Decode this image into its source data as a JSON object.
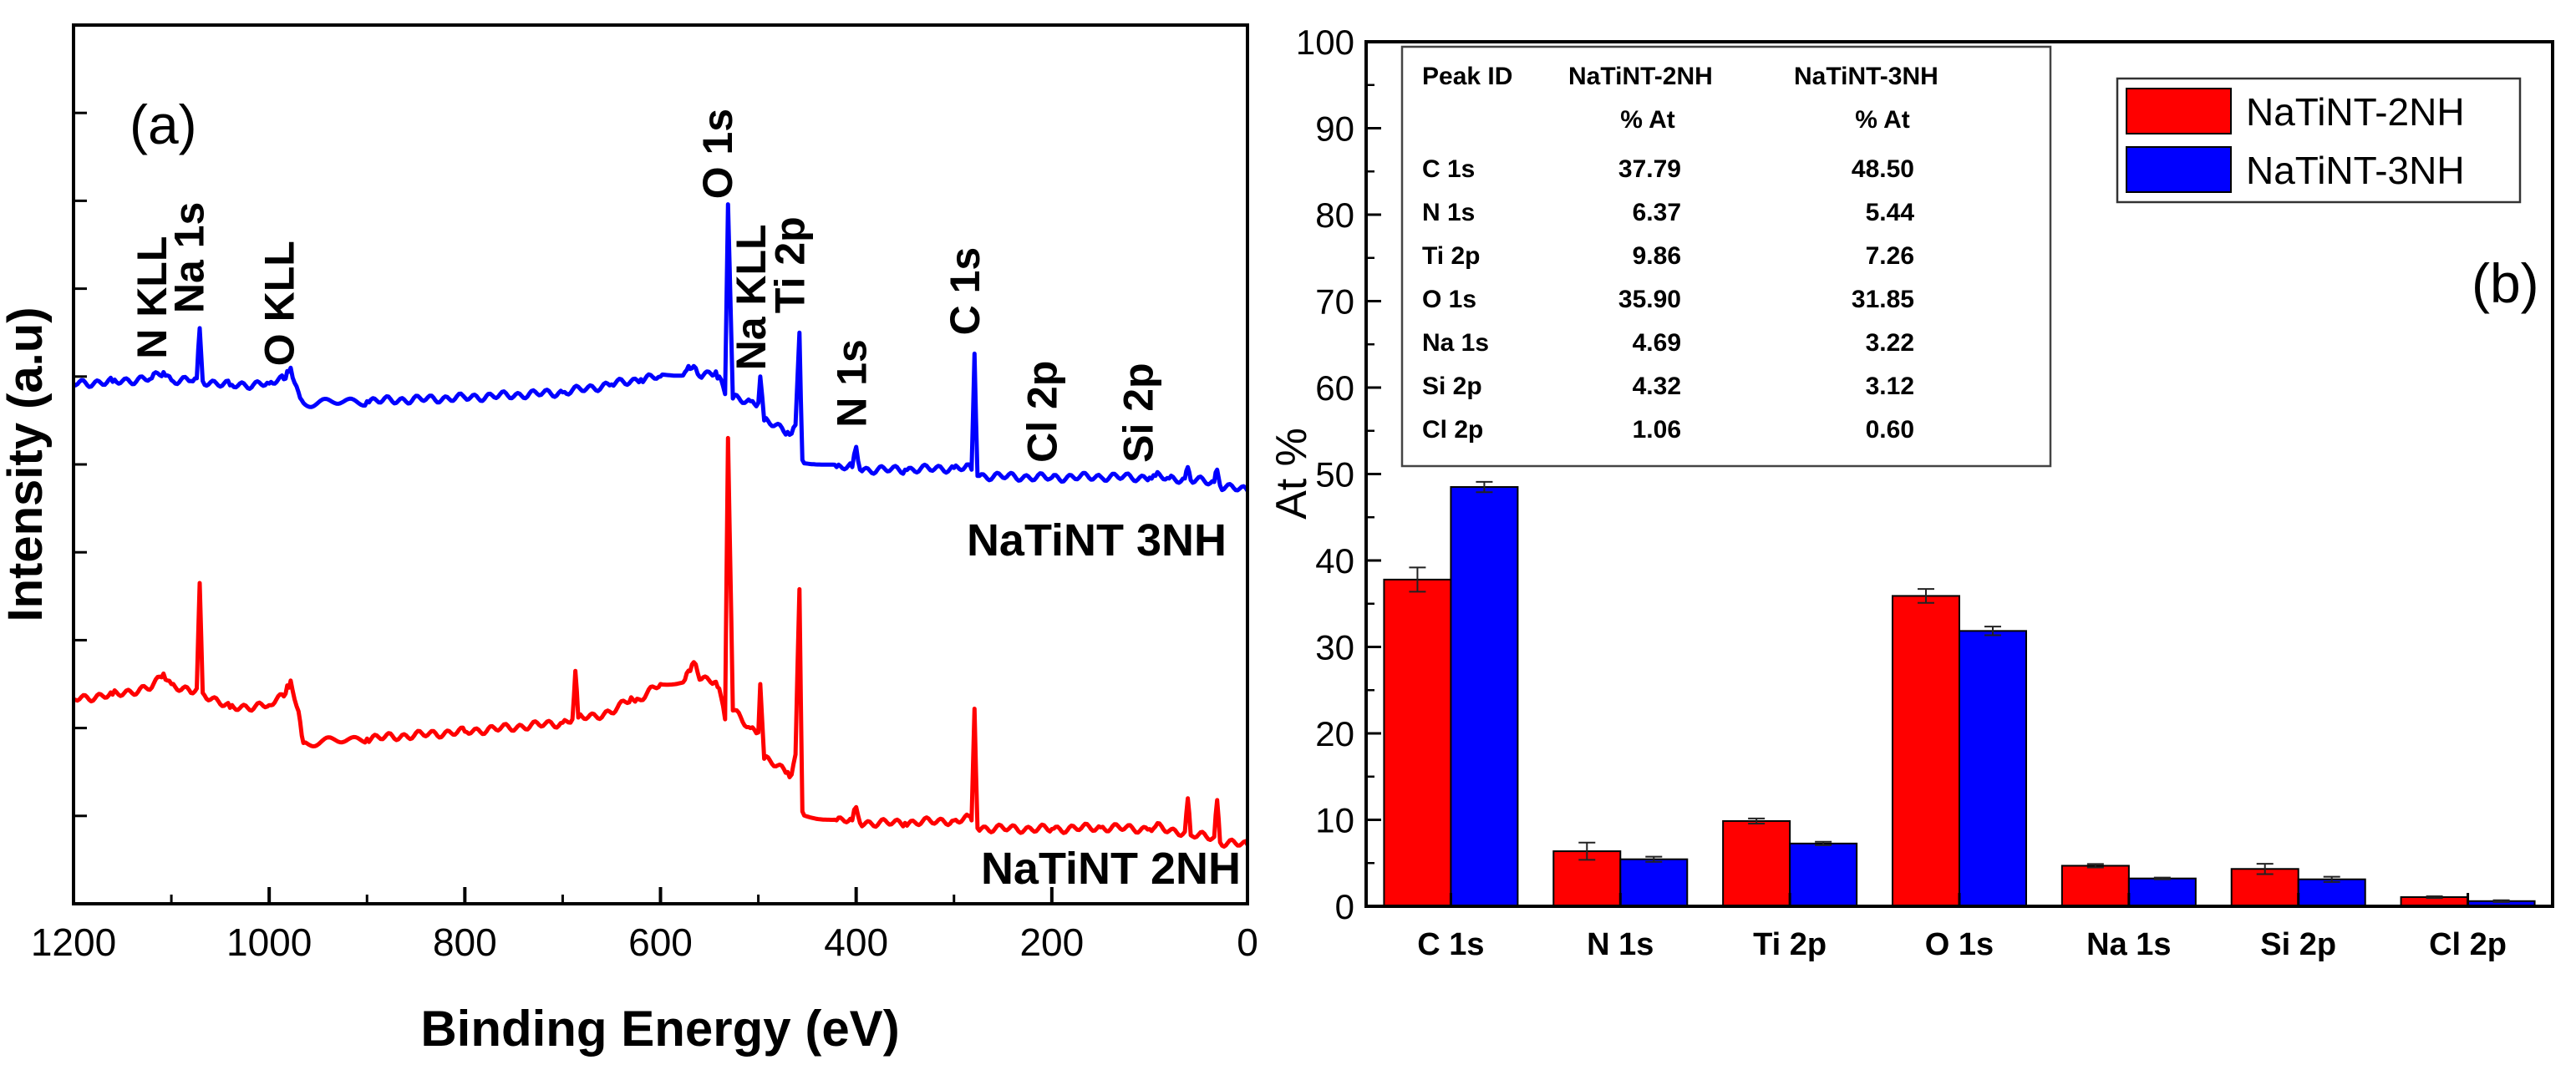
{
  "colors": {
    "series_a": "#ff0000",
    "series_b": "#0000ff",
    "axis": "#000000",
    "error": "#222222"
  },
  "chart_data": [
    {
      "type": "line",
      "panel_label": "(a)",
      "xlabel": "Binding Energy (eV)",
      "ylabel": "Intensity (a.u)",
      "xlim": [
        1200,
        0
      ],
      "x_ticks": [
        1200,
        1000,
        800,
        600,
        400,
        200,
        0
      ],
      "y_tick_count": 11,
      "series": [
        {
          "name": "NaTiNT 3NH",
          "color": "#0000ff",
          "points": [
            [
              1200,
              0.592
            ],
            [
              1160,
              0.594
            ],
            [
              1120,
              0.598
            ],
            [
              1108,
              0.605
            ],
            [
              1100,
              0.596
            ],
            [
              1080,
              0.595
            ],
            [
              1074,
              0.598
            ],
            [
              1071,
              0.655
            ],
            [
              1068,
              0.595
            ],
            [
              1040,
              0.59
            ],
            [
              1000,
              0.592
            ],
            [
              985,
              0.597
            ],
            [
              978,
              0.61
            ],
            [
              970,
              0.582
            ],
            [
              965,
              0.57
            ],
            [
              900,
              0.572
            ],
            [
              800,
              0.576
            ],
            [
              700,
              0.582
            ],
            [
              650,
              0.591
            ],
            [
              620,
              0.597
            ],
            [
              600,
              0.6
            ],
            [
              575,
              0.605
            ],
            [
              566,
              0.612
            ],
            [
              560,
              0.6
            ],
            [
              545,
              0.602
            ],
            [
              540,
              0.6
            ],
            [
              534,
              0.58
            ],
            [
              531,
              0.796
            ],
            [
              526,
              0.575
            ],
            [
              508,
              0.572
            ],
            [
              500,
              0.57
            ],
            [
              498,
              0.6
            ],
            [
              494,
              0.55
            ],
            [
              470,
              0.537
            ],
            [
              466,
              0.535
            ],
            [
              462,
              0.545
            ],
            [
              458,
              0.65
            ],
            [
              455,
              0.505
            ],
            [
              420,
              0.497
            ],
            [
              404,
              0.497
            ],
            [
              400,
              0.52
            ],
            [
              396,
              0.494
            ],
            [
              350,
              0.494
            ],
            [
              300,
              0.496
            ],
            [
              285,
              0.5
            ],
            [
              282,
              0.494
            ],
            [
              279,
              0.626
            ],
            [
              276,
              0.487
            ],
            [
              200,
              0.485
            ],
            [
              150,
              0.486
            ],
            [
              100,
              0.485
            ],
            [
              94,
              0.487
            ],
            [
              80,
              0.484
            ],
            [
              64,
              0.484
            ],
            [
              61,
              0.497
            ],
            [
              58,
              0.482
            ],
            [
              34,
              0.48
            ],
            [
              31,
              0.494
            ],
            [
              28,
              0.476
            ],
            [
              0,
              0.47
            ]
          ],
          "label": "NaTiNT 3NH"
        },
        {
          "name": "NaTiNT 2NH",
          "color": "#ff0000",
          "points": [
            [
              1200,
              0.233
            ],
            [
              1160,
              0.238
            ],
            [
              1120,
              0.246
            ],
            [
              1108,
              0.262
            ],
            [
              1100,
              0.25
            ],
            [
              1080,
              0.24
            ],
            [
              1074,
              0.245
            ],
            [
              1071,
              0.365
            ],
            [
              1068,
              0.24
            ],
            [
              1040,
              0.223
            ],
            [
              1000,
              0.226
            ],
            [
              985,
              0.236
            ],
            [
              978,
              0.254
            ],
            [
              970,
              0.219
            ],
            [
              965,
              0.183
            ],
            [
              900,
              0.188
            ],
            [
              800,
              0.196
            ],
            [
              700,
              0.206
            ],
            [
              690,
              0.21
            ],
            [
              687,
              0.265
            ],
            [
              684,
              0.212
            ],
            [
              650,
              0.217
            ],
            [
              630,
              0.235
            ],
            [
              626,
              0.23
            ],
            [
              600,
              0.25
            ],
            [
              575,
              0.255
            ],
            [
              566,
              0.275
            ],
            [
              560,
              0.255
            ],
            [
              545,
              0.252
            ],
            [
              540,
              0.245
            ],
            [
              534,
              0.21
            ],
            [
              531,
              0.53
            ],
            [
              526,
              0.22
            ],
            [
              508,
              0.2
            ],
            [
              500,
              0.195
            ],
            [
              498,
              0.25
            ],
            [
              494,
              0.165
            ],
            [
              470,
              0.15
            ],
            [
              466,
              0.147
            ],
            [
              462,
              0.17
            ],
            [
              458,
              0.358
            ],
            [
              455,
              0.105
            ],
            [
              420,
              0.095
            ],
            [
              404,
              0.095
            ],
            [
              400,
              0.11
            ],
            [
              396,
              0.092
            ],
            [
              350,
              0.092
            ],
            [
              300,
              0.095
            ],
            [
              285,
              0.1
            ],
            [
              282,
              0.095
            ],
            [
              279,
              0.222
            ],
            [
              276,
              0.086
            ],
            [
              200,
              0.085
            ],
            [
              150,
              0.087
            ],
            [
              100,
              0.085
            ],
            [
              94,
              0.088
            ],
            [
              80,
              0.083
            ],
            [
              64,
              0.082
            ],
            [
              61,
              0.12
            ],
            [
              58,
              0.078
            ],
            [
              34,
              0.076
            ],
            [
              31,
              0.118
            ],
            [
              28,
              0.07
            ],
            [
              0,
              0.067
            ]
          ],
          "label": "NaTiNT 2NH"
        }
      ],
      "annotations": [
        {
          "text": "N KLL",
          "x": 1105,
          "y": 0.62
        },
        {
          "text": "Na 1s",
          "x": 1067,
          "y": 0.672
        },
        {
          "text": "O KLL",
          "x": 975,
          "y": 0.612
        },
        {
          "text": "O 1s",
          "x": 527,
          "y": 0.802
        },
        {
          "text": "Na KLL",
          "x": 493,
          "y": 0.607
        },
        {
          "text": "Ti 2p",
          "x": 453,
          "y": 0.672
        },
        {
          "text": "N 1s",
          "x": 390,
          "y": 0.542
        },
        {
          "text": "C 1s",
          "x": 274,
          "y": 0.647
        },
        {
          "text": "Cl 2p",
          "x": 195,
          "y": 0.502
        },
        {
          "text": "Si 2p",
          "x": 97,
          "y": 0.502
        }
      ]
    },
    {
      "type": "bar",
      "panel_label": "(b)",
      "ylabel": "At %",
      "ylim": [
        0,
        100
      ],
      "y_ticks": [
        0,
        10,
        20,
        30,
        40,
        50,
        60,
        70,
        80,
        90,
        100
      ],
      "categories": [
        "C 1s",
        "N 1s",
        "Ti 2p",
        "O 1s",
        "Na 1s",
        "Si 2p",
        "Cl 2p"
      ],
      "series": [
        {
          "name": "NaTiNT-2NH",
          "color": "#ff0000",
          "values": [
            37.79,
            6.37,
            9.86,
            35.9,
            4.69,
            4.32,
            1.06
          ],
          "errors": [
            1.4,
            1.0,
            0.3,
            0.8,
            0.2,
            0.6,
            0.1
          ]
        },
        {
          "name": "NaTiNT-3NH",
          "color": "#0000ff",
          "values": [
            48.5,
            5.44,
            7.26,
            31.85,
            3.22,
            3.12,
            0.6
          ],
          "errors": [
            0.6,
            0.3,
            0.2,
            0.5,
            0.1,
            0.3,
            0.1
          ]
        }
      ],
      "legend": {
        "placement": "top-right",
        "entries": [
          "NaTiNT-2NH",
          "NaTiNT-3NH"
        ]
      },
      "table": {
        "headers": [
          "Peak ID",
          "NaTiNT-2NH",
          "NaTiNT-3NH"
        ],
        "subheaders": [
          "",
          "% At",
          "% At"
        ],
        "rows": [
          [
            "C 1s",
            "37.79",
            "48.50"
          ],
          [
            "N 1s",
            "6.37",
            "5.44"
          ],
          [
            "Ti 2p",
            "9.86",
            "7.26"
          ],
          [
            "O 1s",
            "35.90",
            "31.85"
          ],
          [
            "Na 1s",
            "4.69",
            "3.22"
          ],
          [
            "Si 2p",
            "4.32",
            "3.12"
          ],
          [
            "Cl 2p",
            "1.06",
            "0.60"
          ]
        ]
      }
    }
  ]
}
